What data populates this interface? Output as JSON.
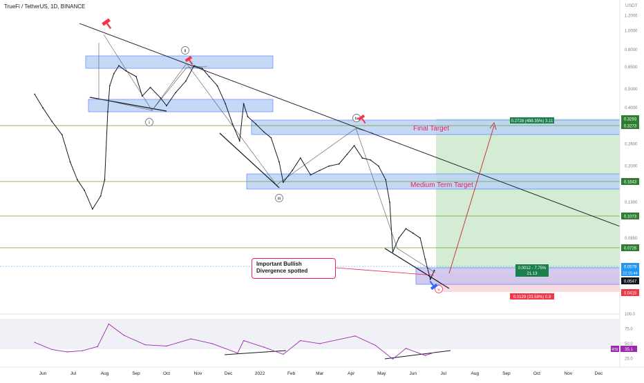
{
  "header": {
    "symbol": "TrueFi / TetherUS, 1D, BINANCE",
    "unit": "USDT"
  },
  "annotations": {
    "final_target": "Final Target",
    "medium_target": "Medium Term Target",
    "callout": "Important Bullish Divergence spotted",
    "wave_labels": [
      "i",
      "ii",
      "iii",
      "iv",
      "v"
    ]
  },
  "colors": {
    "zone_fill": "#bbd3f5",
    "zone_stroke": "#2962ff",
    "profit_fill": "#cde9cd",
    "loss_fill": "#f7d7db",
    "level_line": "#689f38",
    "callout_border": "#e91e63",
    "target_text": "#e91e63",
    "price_bar": "#131722",
    "rsi_line": "#9c27b0"
  },
  "chart_data": {
    "type": "line",
    "title": "TrueFi / TetherUS, 1D, BINANCE",
    "y_scale": "log",
    "ylabel": "USDT",
    "x_ticks": [
      "Jun",
      "Jul",
      "Aug",
      "Sep",
      "Oct",
      "Nov",
      "Dec",
      "2022",
      "Feb",
      "Mar",
      "Apr",
      "May",
      "Jun",
      "Jul",
      "Aug",
      "Sep",
      "Oct",
      "Nov",
      "Dec"
    ],
    "y_ticks": [
      "1.2000",
      "1.0000",
      "0.8000",
      "0.6500",
      "0.5000",
      "0.4000",
      "0.2600",
      "0.2000",
      "0.1300",
      "0.0850"
    ],
    "ylim": [
      0.038,
      1.35
    ],
    "series": [
      {
        "values": [
          {
            "x": "2021-05-24",
            "y": 0.47
          },
          {
            "x": "2021-06-01",
            "y": 0.4
          },
          {
            "x": "2021-06-10",
            "y": 0.34
          },
          {
            "x": "2021-06-20",
            "y": 0.29
          },
          {
            "x": "2021-06-28",
            "y": 0.21
          },
          {
            "x": "2021-07-05",
            "y": 0.17
          },
          {
            "x": "2021-07-12",
            "y": 0.15
          },
          {
            "x": "2021-07-20",
            "y": 0.12
          },
          {
            "x": "2021-07-28",
            "y": 0.14
          },
          {
            "x": "2021-08-01",
            "y": 0.17
          },
          {
            "x": "2021-08-04",
            "y": 0.38
          },
          {
            "x": "2021-08-06",
            "y": 0.52
          },
          {
            "x": "2021-08-10",
            "y": 0.6
          },
          {
            "x": "2021-08-15",
            "y": 0.66
          },
          {
            "x": "2021-08-22",
            "y": 0.62
          },
          {
            "x": "2021-09-01",
            "y": 0.58
          },
          {
            "x": "2021-09-07",
            "y": 0.46
          },
          {
            "x": "2021-09-15",
            "y": 0.51
          },
          {
            "x": "2021-09-25",
            "y": 0.45
          },
          {
            "x": "2021-10-01",
            "y": 0.41
          },
          {
            "x": "2021-10-10",
            "y": 0.48
          },
          {
            "x": "2021-10-20",
            "y": 0.55
          },
          {
            "x": "2021-10-28",
            "y": 0.66
          },
          {
            "x": "2021-11-05",
            "y": 0.64
          },
          {
            "x": "2021-11-12",
            "y": 0.58
          },
          {
            "x": "2021-11-20",
            "y": 0.52
          },
          {
            "x": "2021-11-28",
            "y": 0.42
          },
          {
            "x": "2021-12-05",
            "y": 0.33
          },
          {
            "x": "2021-12-12",
            "y": 0.27
          },
          {
            "x": "2021-12-16",
            "y": 0.42
          },
          {
            "x": "2021-12-20",
            "y": 0.36
          },
          {
            "x": "2021-12-28",
            "y": 0.33
          },
          {
            "x": "2022-01-05",
            "y": 0.3
          },
          {
            "x": "2022-01-12",
            "y": 0.28
          },
          {
            "x": "2022-01-20",
            "y": 0.21
          },
          {
            "x": "2022-01-24",
            "y": 0.165
          },
          {
            "x": "2022-02-02",
            "y": 0.19
          },
          {
            "x": "2022-02-10",
            "y": 0.22
          },
          {
            "x": "2022-02-20",
            "y": 0.18
          },
          {
            "x": "2022-03-01",
            "y": 0.19
          },
          {
            "x": "2022-03-10",
            "y": 0.2
          },
          {
            "x": "2022-03-20",
            "y": 0.205
          },
          {
            "x": "2022-03-28",
            "y": 0.23
          },
          {
            "x": "2022-04-04",
            "y": 0.255
          },
          {
            "x": "2022-04-12",
            "y": 0.22
          },
          {
            "x": "2022-04-20",
            "y": 0.215
          },
          {
            "x": "2022-04-28",
            "y": 0.2
          },
          {
            "x": "2022-05-05",
            "y": 0.17
          },
          {
            "x": "2022-05-09",
            "y": 0.13
          },
          {
            "x": "2022-05-12",
            "y": 0.072
          },
          {
            "x": "2022-05-18",
            "y": 0.085
          },
          {
            "x": "2022-05-25",
            "y": 0.095
          },
          {
            "x": "2022-06-01",
            "y": 0.09
          },
          {
            "x": "2022-06-08",
            "y": 0.085
          },
          {
            "x": "2022-06-13",
            "y": 0.066
          },
          {
            "x": "2022-06-18",
            "y": 0.052
          },
          {
            "x": "2022-06-22",
            "y": 0.0579
          }
        ]
      }
    ],
    "levels": [
      {
        "label": "0.3293",
        "y": 0.3293,
        "color": "#2e7d32"
      },
      {
        "label": "0.3273",
        "y": 0.3273,
        "color": "#2e7d32"
      },
      {
        "label": "0.1643",
        "y": 0.1643,
        "color": "#2e7d32"
      },
      {
        "label": "0.1073",
        "y": 0.1073,
        "color": "#2e7d32"
      },
      {
        "label": "0.0726",
        "y": 0.0726,
        "color": "#2e7d32"
      },
      {
        "label": "0.0579",
        "y": 0.0579,
        "color": "#2196f3"
      },
      {
        "label": "0.0547",
        "y": 0.0547,
        "color": "#131722"
      },
      {
        "label": "0.0418",
        "y": 0.0418,
        "color": "#f23645"
      }
    ],
    "countdown": "22:15:44",
    "position": {
      "target_label": "0.2728 (498.35%) 3.11",
      "entry_label": "0.0012 - 7.75%",
      "ratio_label": "21.13",
      "stop_label": "0.0129 (23.58%) 0.9"
    },
    "rsi": {
      "ticks": [
        "100.0",
        "75.0",
        "50.0",
        "25.0"
      ],
      "ylim": [
        15,
        100
      ],
      "label": "RSI",
      "value_label": "35.1",
      "values": [
        {
          "x": "2021-05-24",
          "y": 52
        },
        {
          "x": "2021-06-10",
          "y": 40
        },
        {
          "x": "2021-06-25",
          "y": 36
        },
        {
          "x": "2021-07-10",
          "y": 38
        },
        {
          "x": "2021-07-25",
          "y": 45
        },
        {
          "x": "2021-08-05",
          "y": 83
        },
        {
          "x": "2021-08-20",
          "y": 64
        },
        {
          "x": "2021-09-10",
          "y": 48
        },
        {
          "x": "2021-10-01",
          "y": 46
        },
        {
          "x": "2021-10-25",
          "y": 58
        },
        {
          "x": "2021-11-15",
          "y": 50
        },
        {
          "x": "2021-12-10",
          "y": 34
        },
        {
          "x": "2021-12-16",
          "y": 55
        },
        {
          "x": "2022-01-05",
          "y": 44
        },
        {
          "x": "2022-01-24",
          "y": 32
        },
        {
          "x": "2022-02-10",
          "y": 55
        },
        {
          "x": "2022-03-01",
          "y": 50
        },
        {
          "x": "2022-04-05",
          "y": 63
        },
        {
          "x": "2022-04-25",
          "y": 47
        },
        {
          "x": "2022-05-12",
          "y": 24
        },
        {
          "x": "2022-05-25",
          "y": 42
        },
        {
          "x": "2022-06-13",
          "y": 30
        },
        {
          "x": "2022-06-22",
          "y": 35.1
        }
      ]
    }
  }
}
